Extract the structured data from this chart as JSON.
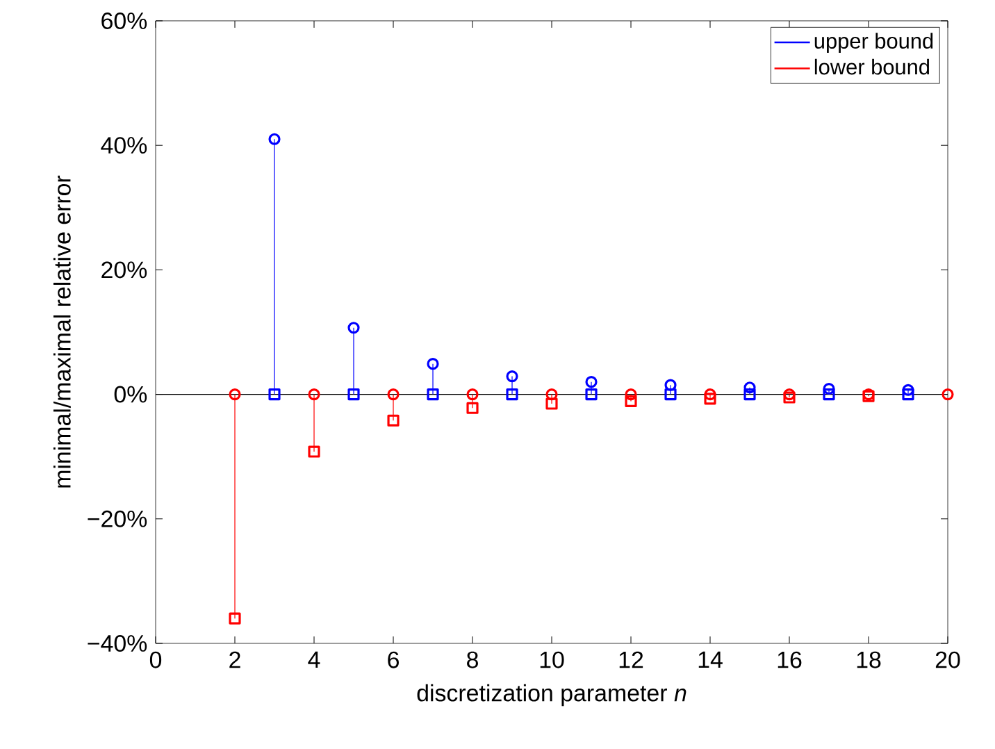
{
  "chart_data": {
    "type": "lollipop",
    "xlabel": "discretization parameter *n*",
    "ylabel": "minimal/maximal relative error",
    "xlim": [
      0,
      20
    ],
    "ylim": [
      -40,
      60
    ],
    "xticks": [
      0,
      2,
      4,
      6,
      8,
      10,
      12,
      14,
      16,
      18,
      20
    ],
    "yticks": [
      {
        "value": -40,
        "label": "−40%"
      },
      {
        "value": -20,
        "label": "−20%"
      },
      {
        "value": 0,
        "label": "0%"
      },
      {
        "value": 20,
        "label": "20%"
      },
      {
        "value": 40,
        "label": "40%"
      },
      {
        "value": 60,
        "label": "60%"
      }
    ],
    "legend": "top right",
    "ref_lines": [
      {
        "axis": "y",
        "value": 0,
        "color": "#000000"
      }
    ],
    "series": [
      {
        "name": "upper bound",
        "marker": "circle",
        "color": "#0000ff",
        "x": [
          3,
          5,
          7,
          9,
          11,
          13,
          15,
          17,
          19
        ],
        "values": [
          41,
          10.7,
          4.9,
          2.9,
          2.0,
          1.5,
          1.1,
          0.9,
          0.7
        ]
      },
      {
        "type": "scatter",
        "marker": "square",
        "color": "#0000ff",
        "x": [
          3,
          5,
          7,
          9,
          11,
          13,
          15,
          17,
          19
        ],
        "values": [
          0,
          0,
          0,
          0,
          0,
          0,
          0,
          0,
          0
        ]
      },
      {
        "name": "lower bound",
        "marker": "square",
        "color": "#ff0000",
        "x": [
          2,
          4,
          6,
          8,
          10,
          12,
          14,
          16,
          18
        ],
        "values": [
          -36,
          -9.2,
          -4.2,
          -2.2,
          -1.5,
          -1.1,
          -0.7,
          -0.5,
          -0.3
        ]
      },
      {
        "type": "scatter",
        "marker": "circle",
        "color": "#ff0000",
        "x": [
          2,
          4,
          6,
          8,
          10,
          12,
          14,
          16,
          18,
          20
        ],
        "values": [
          0,
          0,
          0,
          0,
          0,
          0,
          0,
          0,
          0,
          0
        ]
      }
    ]
  }
}
